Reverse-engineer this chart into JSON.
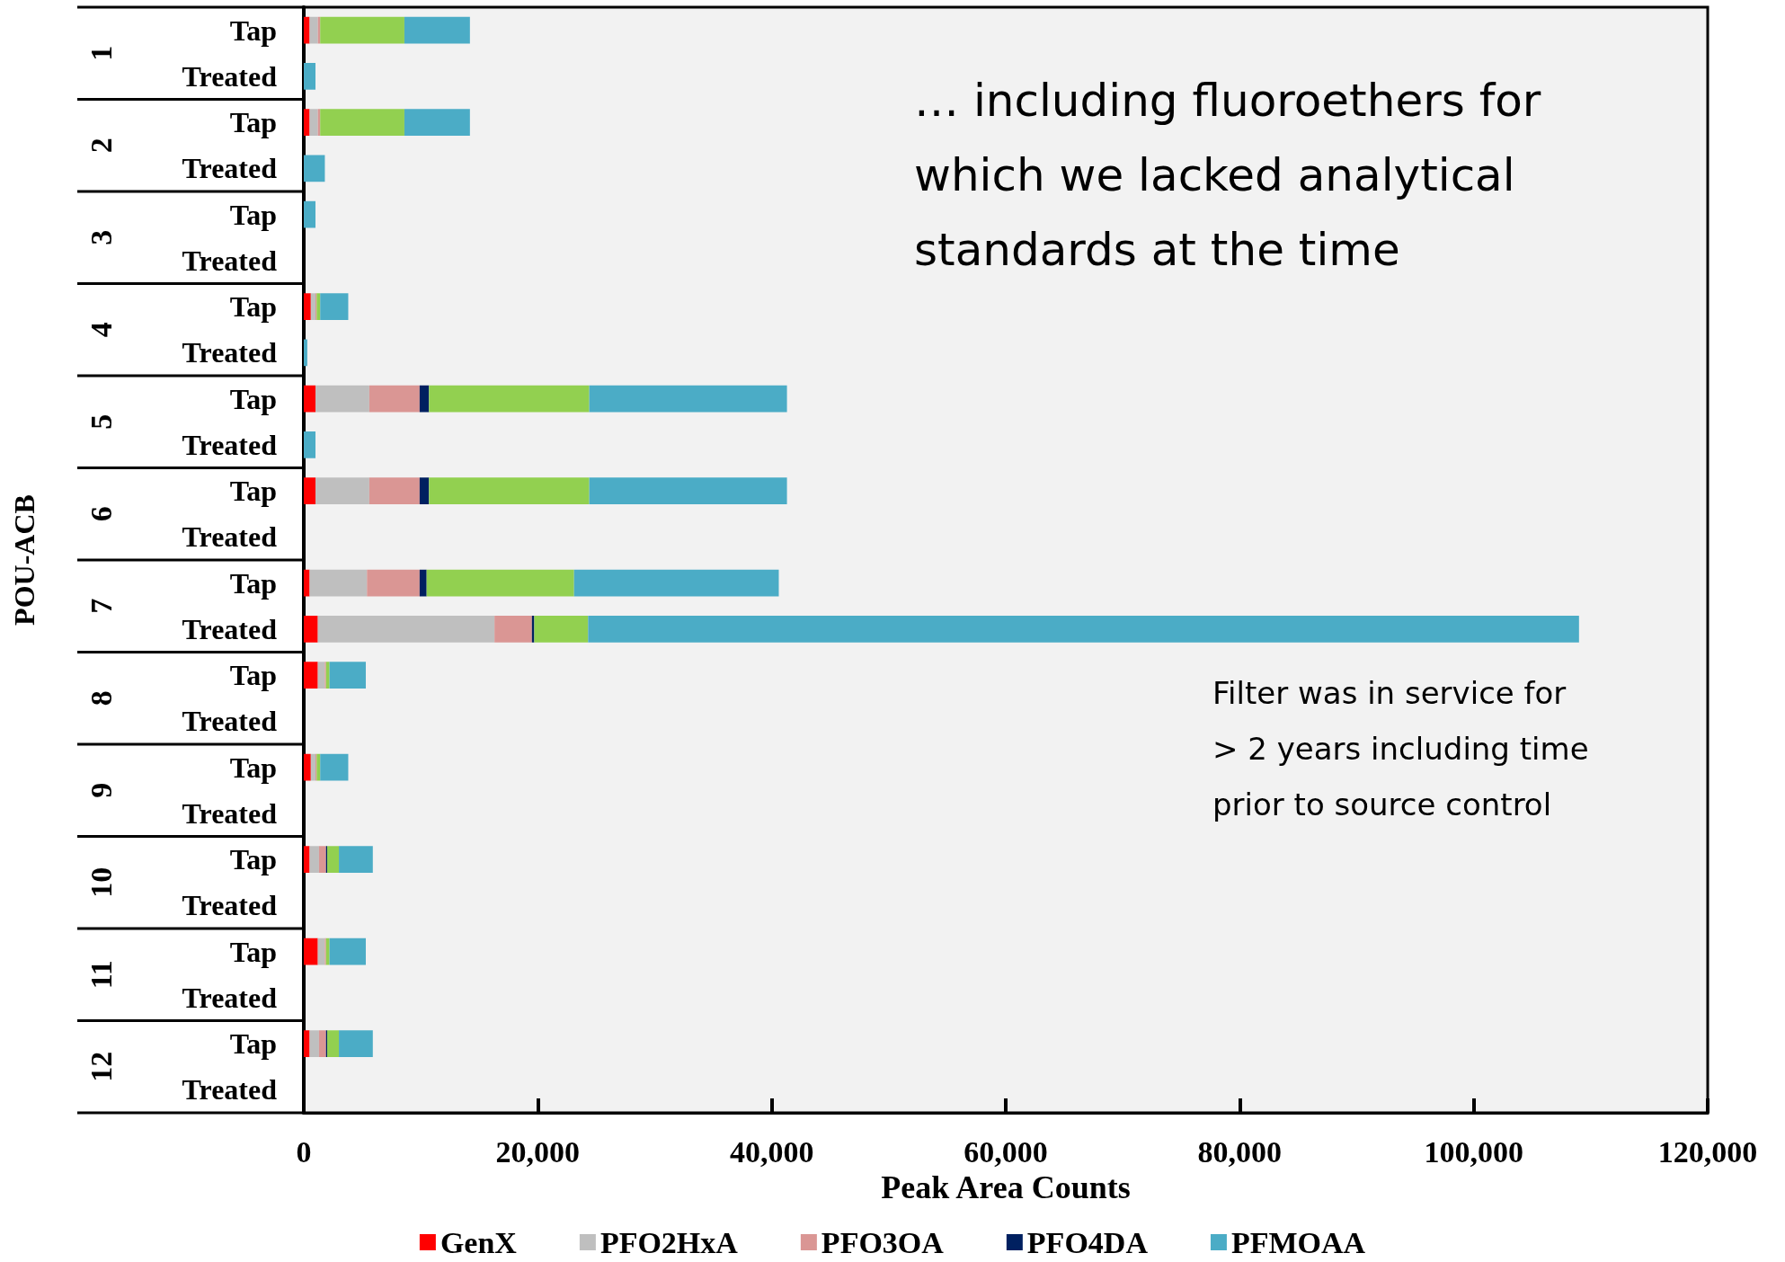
{
  "chart_data": {
    "type": "bar",
    "orientation": "horizontal",
    "stacked": true,
    "ylabel": "POU-ACB",
    "xlabel": "Peak Area Counts",
    "categories": [
      "Tap",
      "Treated",
      "Tap",
      "Treated",
      "Tap",
      "Treated",
      "Tap",
      "Treated",
      "Tap",
      "Treated",
      "Tap",
      "Treated",
      "Tap",
      "Treated",
      "Tap",
      "Treated",
      "Tap",
      "Treated",
      "Tap",
      "Treated",
      "Tap",
      "Treated",
      "Tap",
      "Treated"
    ],
    "series": [
      {
        "name": "GenX",
        "color": "#ff0000",
        "values": [
          500,
          null,
          500,
          null,
          null,
          null,
          600,
          null,
          1000,
          null,
          1000,
          null,
          500,
          1200,
          1200,
          null,
          600,
          null,
          500,
          null,
          1200,
          null,
          500,
          null
        ]
      },
      {
        "name": "PFO2HxA",
        "color": "#bfbfbf",
        "values": [
          700,
          null,
          700,
          null,
          null,
          null,
          400,
          null,
          4600,
          null,
          4600,
          null,
          4900,
          15100,
          600,
          null,
          400,
          null,
          800,
          null,
          600,
          null,
          800,
          null
        ]
      },
      {
        "name": "PFO3OA",
        "color": "#da9694",
        "values": [
          200,
          null,
          200,
          null,
          null,
          null,
          100,
          null,
          4300,
          null,
          4300,
          null,
          4500,
          3200,
          100,
          null,
          100,
          null,
          600,
          null,
          100,
          null,
          600,
          null
        ]
      },
      {
        "name": "PFO4DA",
        "color": "#002060",
        "values": [
          null,
          null,
          null,
          null,
          null,
          null,
          null,
          null,
          800,
          null,
          800,
          null,
          600,
          200,
          null,
          null,
          null,
          null,
          100,
          null,
          null,
          null,
          100,
          null
        ]
      },
      {
        "color": "#92d050",
        "values": [
          7200,
          null,
          7200,
          null,
          null,
          null,
          300,
          null,
          13700,
          null,
          13700,
          null,
          12600,
          4600,
          300,
          null,
          300,
          null,
          1000,
          null,
          300,
          null,
          1000,
          null
        ]
      },
      {
        "name": "PFMOAA",
        "color": "#4bacc6",
        "values": [
          5600,
          1000,
          5600,
          1800,
          1000,
          null,
          2400,
          300,
          16900,
          1000,
          16900,
          null,
          17500,
          84700,
          3100,
          null,
          2400,
          null,
          2900,
          null,
          3100,
          null,
          2900,
          null
        ]
      }
    ],
    "xlim": [
      0,
      120000
    ],
    "xticks": [
      0,
      {
        "value": 20000,
        "label": "20,000"
      },
      {
        "value": 40000,
        "label": "40,000"
      },
      {
        "value": 60000,
        "label": "60,000"
      },
      {
        "value": 80000,
        "label": "80,000"
      },
      {
        "value": 100000,
        "label": "100,000"
      },
      {
        "value": 120000,
        "label": "120,000"
      }
    ],
    "grid": false,
    "legend": "bottom",
    "annotations": [
      "1",
      "2",
      "3",
      "4",
      "5",
      "6",
      "7",
      "8",
      "9",
      "10",
      "11",
      "12",
      {
        "text": "… including fluoroethers for which we lacked analytical standards at the time"
      },
      {
        "text": "Filter was in service for > 2 years including time prior to source control"
      }
    ]
  }
}
